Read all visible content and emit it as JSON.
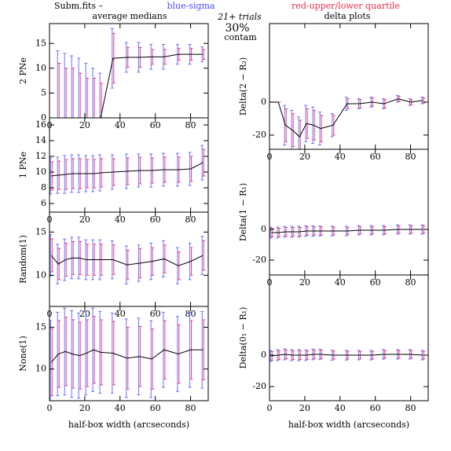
{
  "header": {
    "file": "Subm.fits  –",
    "sigma_note": "blue-sigma",
    "quartile_note": "red-upper/lower quartile",
    "left_title": "average medians",
    "trials": "21+ trials",
    "contam_pct": "30%",
    "contam": "contam",
    "right_title": "delta plots"
  },
  "chart_data": [
    {
      "type": "line",
      "ylabel": "2 PNe",
      "x": [
        1,
        5,
        9,
        13,
        17,
        21,
        25,
        29,
        36,
        44,
        51,
        58,
        65,
        73,
        80,
        87
      ],
      "values": [
        0,
        0,
        0,
        0,
        0,
        0,
        0,
        0,
        12,
        12.2,
        12.2,
        12.3,
        12.3,
        12.8,
        12.8,
        12.8
      ],
      "sigma": [
        0,
        13.5,
        13,
        12.5,
        12,
        11,
        10,
        9,
        6,
        3,
        3,
        2.5,
        2.5,
        2,
        2,
        1.5
      ],
      "quartile": [
        0,
        11,
        10,
        10,
        9,
        8,
        8,
        7,
        5,
        2,
        2,
        1.5,
        1.5,
        1.2,
        1.2,
        1
      ],
      "color": "#000000",
      "sigma_color": "#6f6fff",
      "quartile_color": "#e8407a",
      "xlim": [
        0,
        90
      ],
      "xticks": [
        0,
        20,
        40,
        60,
        80
      ],
      "ylim": [
        0,
        19
      ],
      "yticks": [
        0,
        5,
        10,
        15
      ]
    },
    {
      "type": "line",
      "ylabel": "1 PNe",
      "x": [
        1,
        5,
        9,
        13,
        17,
        21,
        25,
        29,
        36,
        44,
        51,
        58,
        65,
        73,
        80,
        87
      ],
      "values": [
        9.5,
        9.6,
        9.7,
        9.8,
        9.8,
        9.8,
        9.8,
        9.9,
        10,
        10.1,
        10.2,
        10.2,
        10.3,
        10.3,
        10.4,
        11.2
      ],
      "sigma": [
        2.3,
        2.3,
        2.4,
        2.4,
        2.4,
        2.3,
        2.3,
        2.3,
        2.2,
        2.2,
        2.1,
        2.1,
        2.1,
        2.1,
        2.1,
        2.2
      ],
      "quartile": [
        1.8,
        1.8,
        1.9,
        1.9,
        1.9,
        1.8,
        1.8,
        1.8,
        1.7,
        1.7,
        1.7,
        1.6,
        1.6,
        1.6,
        1.6,
        1.7
      ],
      "color": "#000000",
      "sigma_color": "#6f6fff",
      "quartile_color": "#e8407a",
      "xlim": [
        0,
        90
      ],
      "xticks": [
        0,
        20,
        40,
        60,
        80
      ],
      "ylim": [
        4.9,
        16.9
      ],
      "yticks": [
        6,
        8,
        10,
        12,
        14,
        16
      ]
    },
    {
      "type": "line",
      "ylabel": "Random(1)",
      "x": [
        1,
        5,
        9,
        13,
        17,
        21,
        25,
        29,
        36,
        44,
        51,
        58,
        65,
        73,
        80,
        87
      ],
      "values": [
        12.3,
        11.3,
        11.8,
        12,
        12,
        11.8,
        11.8,
        11.8,
        11.8,
        11.2,
        11.4,
        11.6,
        11.9,
        11.1,
        11.6,
        12.3
      ],
      "sigma": [
        2.4,
        2.3,
        2.4,
        2.4,
        2.4,
        2.3,
        2.3,
        2.3,
        2.2,
        2.2,
        2.1,
        2.1,
        2.1,
        2.1,
        2.1,
        2.2
      ],
      "quartile": [
        1.9,
        1.8,
        1.9,
        1.9,
        1.9,
        1.8,
        1.8,
        1.8,
        1.7,
        1.7,
        1.7,
        1.6,
        1.6,
        1.6,
        1.6,
        1.7
      ],
      "color": "#000000",
      "sigma_color": "#6f6fff",
      "quartile_color": "#e8407a",
      "xlim": [
        0,
        90
      ],
      "xticks": [
        0,
        20,
        40,
        60,
        80
      ],
      "ylim": [
        6.4,
        17.3
      ],
      "yticks": [
        10,
        15
      ]
    },
    {
      "type": "line",
      "ylabel": "None(1)",
      "x": [
        1,
        5,
        9,
        13,
        17,
        21,
        25,
        29,
        36,
        44,
        51,
        58,
        65,
        73,
        80,
        87
      ],
      "values": [
        10.8,
        11.8,
        12.1,
        11.8,
        11.6,
        11.9,
        12.3,
        12,
        11.9,
        11.3,
        11.5,
        11.2,
        12.3,
        11.8,
        12.3,
        12.3
      ],
      "sigma": [
        5,
        5,
        5.2,
        5.2,
        5.1,
        5,
        5,
        4.9,
        4.8,
        4.7,
        4.6,
        4.6,
        4.5,
        4.5,
        4.5,
        4.6
      ],
      "quartile": [
        4,
        4,
        4.1,
        4.1,
        4,
        4,
        4,
        3.9,
        3.8,
        3.7,
        3.6,
        3.6,
        3.5,
        3.5,
        3.5,
        3.6
      ],
      "color": "#000000",
      "sigma_color": "#6f6fff",
      "quartile_color": "#e8407a",
      "xlim": [
        0,
        90
      ],
      "xticks": [
        0,
        20,
        40,
        60,
        80
      ],
      "ylim": [
        6.2,
        17.5
      ],
      "yticks": [
        10,
        15
      ],
      "xlabel": "half-box width (arcseconds)"
    },
    {
      "type": "line",
      "ylabel": "Delta(2 − R₂)",
      "x": [
        1,
        5,
        9,
        13,
        17,
        21,
        25,
        29,
        36,
        44,
        51,
        58,
        65,
        73,
        80,
        87
      ],
      "values": [
        0,
        0,
        -14,
        -17,
        -21,
        -13,
        -14,
        -16,
        -14,
        -1,
        -1,
        0,
        -1,
        2,
        0,
        1
      ],
      "sigma": [
        0,
        0,
        12,
        12,
        12,
        11,
        11,
        10,
        7,
        4,
        3,
        3,
        3,
        2,
        2,
        2
      ],
      "quartile": [
        0,
        0,
        10,
        10,
        10,
        9,
        9,
        8,
        6,
        3,
        2.5,
        2.5,
        2.5,
        1.5,
        1.5,
        1.5
      ],
      "color": "#000000",
      "sigma_color": "#6f6fff",
      "quartile_color": "#e8407a",
      "xlim": [
        0,
        90
      ],
      "xticks": [
        0,
        20,
        40,
        60,
        80
      ],
      "ylim": [
        -28.6,
        47.6
      ],
      "yticks": [
        -20,
        0
      ]
    },
    {
      "type": "line",
      "ylabel": "Delta(1 − R₁)",
      "x": [
        1,
        5,
        9,
        13,
        17,
        21,
        25,
        29,
        36,
        44,
        51,
        58,
        65,
        73,
        80,
        87
      ],
      "values": [
        -2,
        -2,
        -1.5,
        -1.5,
        -1.5,
        -1,
        -1,
        -1,
        -1,
        -1,
        -0.5,
        -0.5,
        -0.5,
        0,
        0,
        0
      ],
      "sigma": [
        3.5,
        3.5,
        3.5,
        3.5,
        3.5,
        3.4,
        3.4,
        3.3,
        3.2,
        3.1,
        3,
        3,
        3,
        3,
        3,
        3
      ],
      "quartile": [
        2.8,
        2.8,
        2.8,
        2.8,
        2.8,
        2.7,
        2.7,
        2.6,
        2.5,
        2.4,
        2.4,
        2.4,
        2.4,
        2.4,
        2.4,
        2.4
      ],
      "color": "#000000",
      "sigma_color": "#6f6fff",
      "quartile_color": "#e8407a",
      "xlim": [
        0,
        90
      ],
      "xticks": [
        0,
        20,
        40,
        60,
        80
      ],
      "ylim": [
        -29.7,
        52.3
      ],
      "yticks": [
        -20,
        0
      ]
    },
    {
      "type": "line",
      "ylabel": "Delta(0₁ − R₁)",
      "x": [
        1,
        5,
        9,
        13,
        17,
        21,
        25,
        29,
        36,
        44,
        51,
        58,
        65,
        73,
        80,
        87
      ],
      "values": [
        -0.5,
        0,
        0.5,
        0,
        0,
        0,
        0.5,
        0.5,
        0,
        0,
        0,
        0,
        0.5,
        0.5,
        0.5,
        0
      ],
      "sigma": [
        3.5,
        3.5,
        3.5,
        3.5,
        3.5,
        3.4,
        3.4,
        3.3,
        3.2,
        3.1,
        3,
        3,
        3,
        3,
        3,
        3
      ],
      "quartile": [
        2.8,
        2.8,
        2.8,
        2.8,
        2.8,
        2.7,
        2.7,
        2.6,
        2.5,
        2.4,
        2.4,
        2.4,
        2.4,
        2.4,
        2.4,
        2.4
      ],
      "color": "#000000",
      "sigma_color": "#6f6fff",
      "quartile_color": "#e8407a",
      "xlim": [
        0,
        90
      ],
      "xticks": [
        0,
        20,
        40,
        60,
        80
      ],
      "ylim": [
        -29,
        51
      ],
      "yticks": [
        -20,
        0
      ],
      "xlabel": "half-box width (arcseconds)"
    }
  ]
}
